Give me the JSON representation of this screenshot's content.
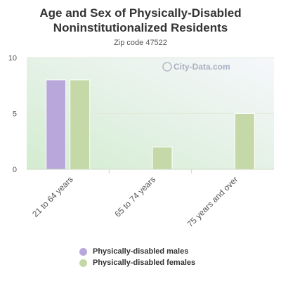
{
  "title_line1": "Age and Sex of Physically-Disabled",
  "title_line2": "Noninstitutionalized Residents",
  "subtitle": "Zip code 47522",
  "watermark": "City-Data.com",
  "colors": {
    "males": "#b9a7dc",
    "females": "#c4d9a7",
    "axis_text": "#555555"
  },
  "legend": [
    {
      "label": "Physically-disabled males",
      "color": "#b9a7dc"
    },
    {
      "label": "Physically-disabled females",
      "color": "#c4d9a7"
    }
  ],
  "chart_data": {
    "type": "bar",
    "categories": [
      "21 to 64 years",
      "65 to 74 years",
      "75 years and over"
    ],
    "series": [
      {
        "name": "Physically-disabled males",
        "values": [
          8,
          0,
          0
        ]
      },
      {
        "name": "Physically-disabled females",
        "values": [
          8,
          2,
          5
        ]
      }
    ],
    "ylim": [
      0,
      10
    ],
    "yticks": [
      0,
      5,
      10
    ],
    "grid": true,
    "legend_position": "bottom"
  }
}
